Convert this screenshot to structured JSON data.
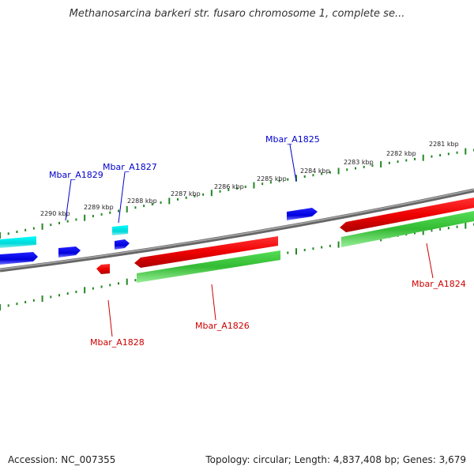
{
  "title": "Methanosarcina barkeri str. fusaro chromosome 1, complete se...",
  "footer": {
    "accession": "Accession: NC_007355",
    "summary": "Topology: circular; Length: 4,837,408 bp; Genes: 3,679"
  },
  "colors": {
    "forward_cds": "#ff0000",
    "reverse_cds": "#0000ff",
    "forward_gene": "#33cc33",
    "reverse_gene": "#00e5e5",
    "backbone": "#888888",
    "ticks": "#228822",
    "label_forward": "#cc0000",
    "label_reverse": "#0000cc"
  },
  "scale_labels": [
    "2290 kbp",
    "2289 kbp",
    "2288 kbp",
    "2287 kbp",
    "2286 kbp",
    "2285 kbp",
    "2284 kbp",
    "2283 kbp",
    "2282 kbp",
    "2281 kbp"
  ],
  "gene_labels": {
    "reverse": [
      "Mbar_A1829",
      "Mbar_A1827",
      "Mbar_A1825"
    ],
    "forward": [
      "Mbar_A1828",
      "Mbar_A1826",
      "Mbar_A1824"
    ]
  }
}
